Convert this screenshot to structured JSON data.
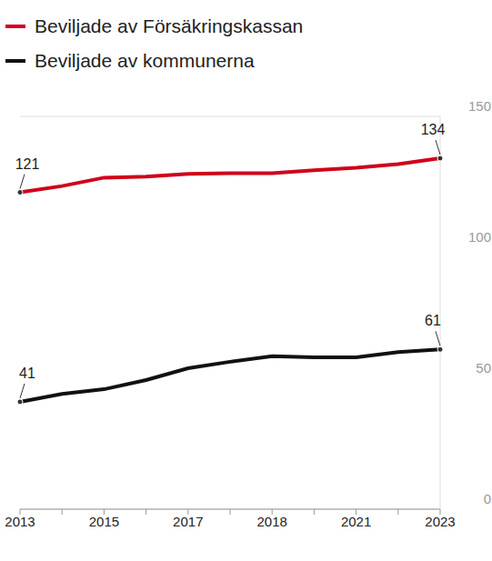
{
  "chart_data": {
    "type": "line",
    "categories": [
      "2013",
      null,
      "2015",
      null,
      "2017",
      null,
      "2018",
      null,
      "2021",
      null,
      "2023"
    ],
    "series": [
      {
        "name": "Beviljade av Försäkringskassan",
        "color": "#d0021b",
        "values": [
          121,
          123.4,
          126.6,
          127,
          128,
          128.3,
          128.3,
          129.4,
          130.4,
          131.8,
          134
        ],
        "value_labels": [
          "121",
          null,
          null,
          null,
          null,
          null,
          null,
          null,
          null,
          null,
          "134"
        ]
      },
      {
        "name": "Beviljade av kommunerna",
        "color": "#111111",
        "values": [
          41,
          44,
          45.8,
          49.3,
          53.8,
          56.3,
          58.4,
          58,
          58,
          60,
          61
        ],
        "value_labels": [
          "41",
          null,
          null,
          null,
          null,
          null,
          null,
          null,
          null,
          null,
          "61"
        ]
      }
    ],
    "ylim": [
      0,
      150
    ],
    "yticks": [
      0,
      50,
      100,
      150
    ],
    "grid": true,
    "legend": "top-left"
  }
}
